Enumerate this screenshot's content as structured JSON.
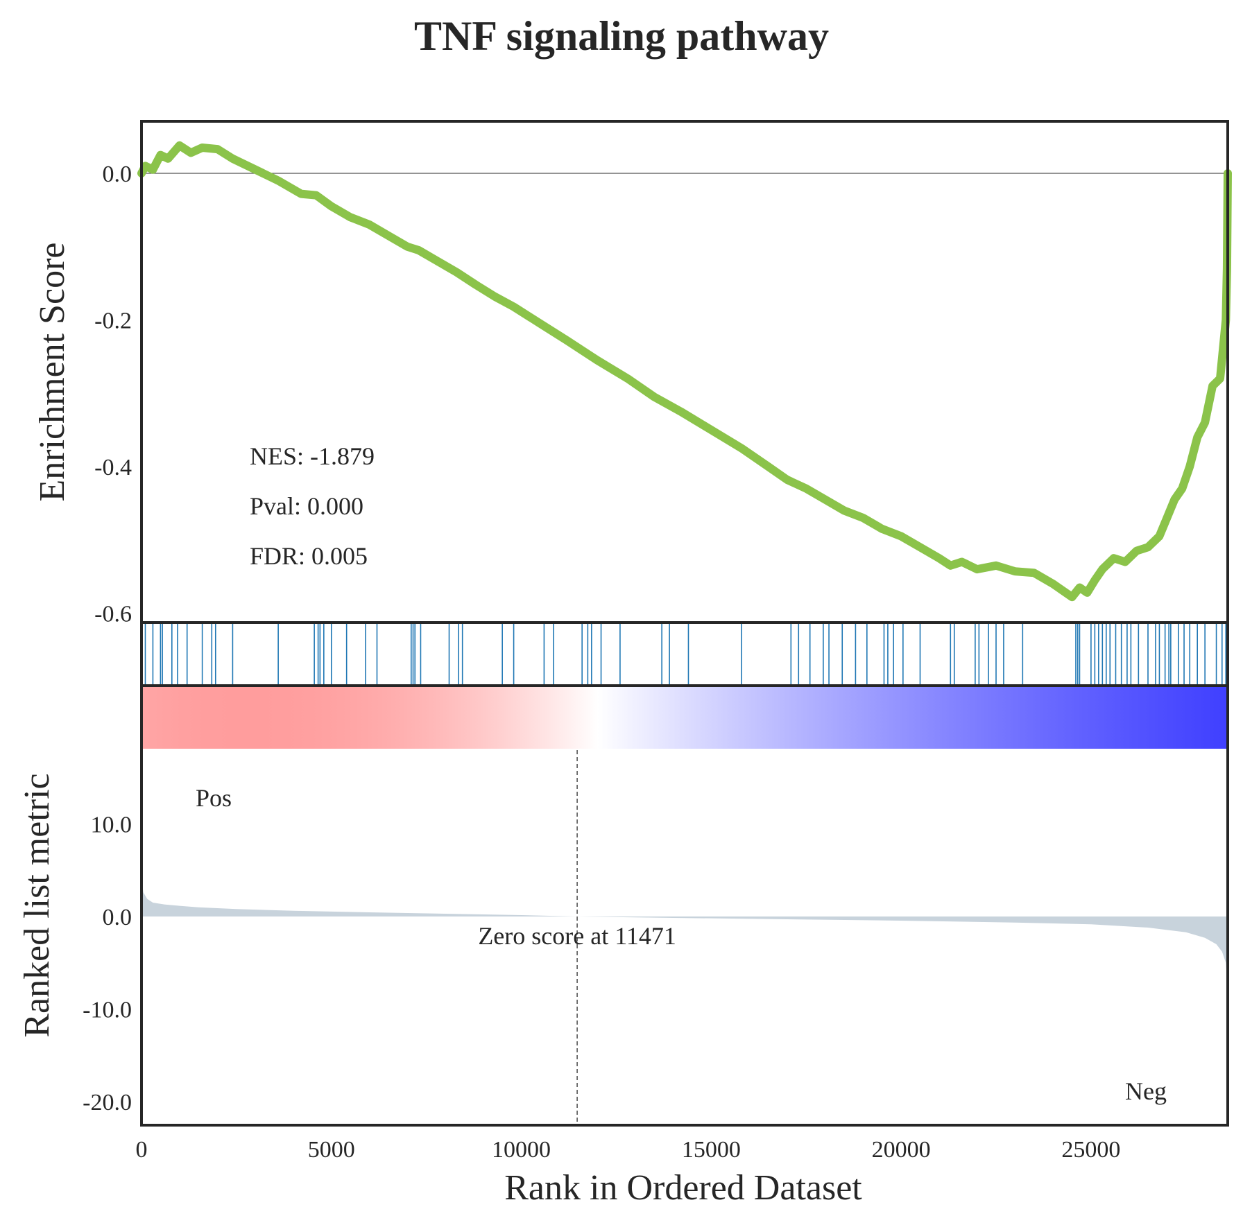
{
  "chart_data": {
    "type": "line",
    "title": "TNF signaling pathway",
    "xlabel": "Rank in Ordered Dataset",
    "xlim": [
      0,
      28600
    ],
    "x_ticks": [
      "0",
      "5000",
      "10000",
      "15000",
      "20000",
      "25000"
    ],
    "x_tick_values": [
      0,
      5000,
      10000,
      15000,
      20000,
      25000
    ],
    "enrichment": {
      "ylabel": "Enrichment Score",
      "ylim": [
        -0.6,
        0.07
      ],
      "y_ticks": [
        "0.0",
        "-0.2",
        "-0.4",
        "-0.6"
      ],
      "y_tick_values": [
        0.0,
        -0.2,
        -0.4,
        -0.6
      ],
      "line_color": "#8bc34a",
      "x": [
        0,
        100,
        300,
        500,
        700,
        1000,
        1300,
        1600,
        2000,
        2400,
        3000,
        3600,
        4200,
        4600,
        5000,
        5500,
        6000,
        6500,
        7000,
        7300,
        7800,
        8300,
        8800,
        9300,
        9800,
        10500,
        11200,
        12000,
        12800,
        13500,
        14200,
        15000,
        15800,
        16500,
        17000,
        17500,
        18000,
        18500,
        19000,
        19500,
        20000,
        20500,
        21000,
        21300,
        21600,
        22000,
        22500,
        23000,
        23500,
        24000,
        24500,
        24700,
        24900,
        25100,
        25300,
        25600,
        25900,
        26200,
        26500,
        26800,
        27000,
        27200,
        27400,
        27600,
        27800,
        28000,
        28200,
        28400,
        28550,
        28580,
        28600
      ],
      "y": [
        0.0,
        0.01,
        0.005,
        0.025,
        0.02,
        0.038,
        0.028,
        0.035,
        0.033,
        0.02,
        0.005,
        -0.01,
        -0.028,
        -0.03,
        -0.045,
        -0.06,
        -0.07,
        -0.085,
        -0.1,
        -0.105,
        -0.12,
        -0.135,
        -0.152,
        -0.168,
        -0.182,
        -0.205,
        -0.228,
        -0.255,
        -0.28,
        -0.305,
        -0.325,
        -0.35,
        -0.375,
        -0.4,
        -0.418,
        -0.43,
        -0.445,
        -0.46,
        -0.47,
        -0.485,
        -0.495,
        -0.51,
        -0.525,
        -0.535,
        -0.53,
        -0.54,
        -0.535,
        -0.543,
        -0.545,
        -0.56,
        -0.578,
        -0.565,
        -0.572,
        -0.555,
        -0.54,
        -0.525,
        -0.53,
        -0.515,
        -0.51,
        -0.495,
        -0.47,
        -0.445,
        -0.43,
        -0.4,
        -0.36,
        -0.34,
        -0.29,
        -0.28,
        -0.2,
        -0.13,
        0.0
      ],
      "annotations": [
        "NES: -1.879",
        "Pval: 0.000",
        "FDR: 0.005"
      ]
    },
    "hits": {
      "color": "#1f77b4",
      "ranks": [
        20,
        100,
        300,
        500,
        550,
        800,
        950,
        1200,
        1600,
        1850,
        1950,
        2400,
        3600,
        4550,
        4650,
        4700,
        4800,
        5000,
        5400,
        5900,
        6200,
        7100,
        7150,
        7200,
        7350,
        8100,
        8350,
        8450,
        9500,
        9800,
        10600,
        10850,
        11600,
        11750,
        11850,
        12100,
        12600,
        13700,
        13900,
        14400,
        15800,
        17100,
        17300,
        17600,
        17950,
        18100,
        18450,
        18800,
        19100,
        19550,
        19650,
        19800,
        20050,
        20500,
        21300,
        21400,
        21950,
        22050,
        22300,
        22500,
        22700,
        23200,
        24600,
        24650,
        24700,
        25000,
        25100,
        25200,
        25300,
        25400,
        25500,
        25650,
        25800,
        25950,
        26050,
        26250,
        26500,
        26700,
        26800,
        26950,
        27050,
        27100,
        27300,
        27450,
        27600,
        27800,
        28000,
        28300,
        28450,
        28550
      ]
    },
    "ranked_metric": {
      "ylabel": "Ranked list metric",
      "ylim": [
        -22.5,
        21.0
      ],
      "y_ticks": [
        "10.0",
        "0.0",
        "-10.0",
        "-20.0"
      ],
      "y_tick_values": [
        10,
        0,
        -10,
        -20
      ],
      "fill_color": "#c8d3dc",
      "x": [
        0,
        50,
        150,
        300,
        600,
        1000,
        1500,
        2500,
        4000,
        6000,
        8000,
        10000,
        11471,
        14000,
        17000,
        20000,
        23000,
        25000,
        26500,
        27500,
        28000,
        28300,
        28450,
        28550,
        28600
      ],
      "values": [
        4.0,
        2.6,
        1.9,
        1.5,
        1.3,
        1.15,
        1.0,
        0.8,
        0.62,
        0.45,
        0.3,
        0.15,
        0.0,
        -0.15,
        -0.3,
        -0.45,
        -0.65,
        -0.85,
        -1.2,
        -1.7,
        -2.3,
        -3.0,
        -3.8,
        -5.0,
        -8.0
      ],
      "zero_cross_rank": 11471,
      "zero_label": "Zero score at 11471",
      "pos_label": "Pos",
      "pos_color": "#ff0000",
      "neg_label": "Neg",
      "neg_color": "#0000ff"
    },
    "gradient": {
      "from": "#ff0000",
      "mid": "#ffffff",
      "to": "#0000ff"
    },
    "grid": false
  }
}
